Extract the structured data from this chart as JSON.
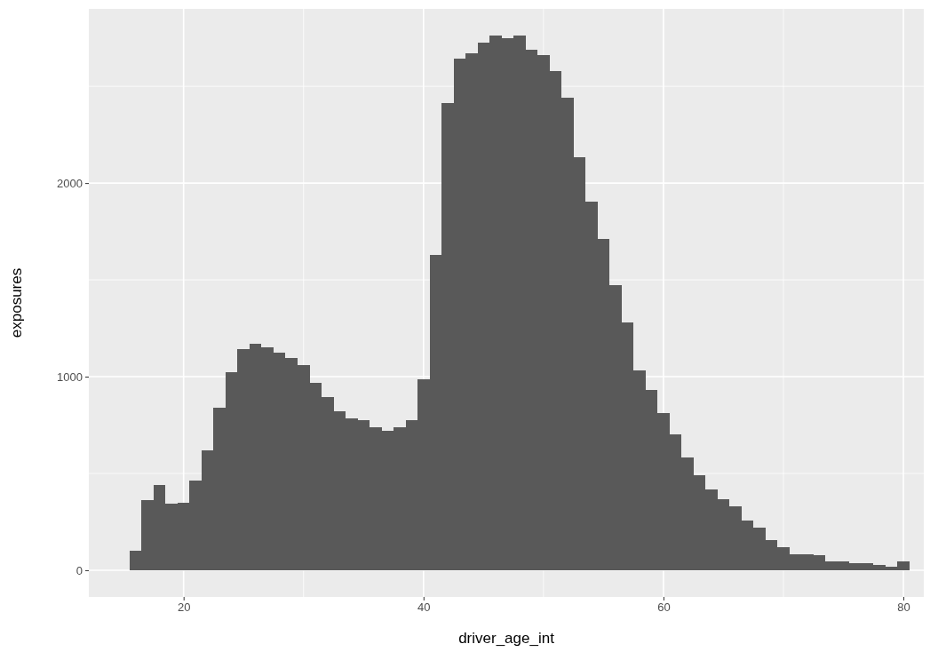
{
  "chart_data": {
    "type": "histogram",
    "xlabel": "driver_age_int",
    "ylabel": "exposures",
    "bins": [
      15.5,
      16.5,
      17.5,
      18.5,
      19.5,
      20.5,
      21.5,
      22.5,
      23.5,
      24.5,
      25.5,
      26.5,
      27.5,
      28.5,
      29.5,
      30.5,
      31.5,
      32.5,
      33.5,
      34.5,
      35.5,
      36.5,
      37.5,
      38.5,
      39.5,
      40.5,
      41.5,
      42.5,
      43.5,
      44.5,
      45.5,
      46.5,
      47.5,
      48.5,
      49.5,
      50.5,
      51.5,
      52.5,
      53.5,
      54.5,
      55.5,
      56.5,
      57.5,
      58.5,
      59.5,
      60.5,
      61.5,
      62.5,
      63.5,
      64.5,
      65.5,
      66.5,
      67.5,
      68.5,
      69.5,
      70.5,
      71.5,
      72.5,
      73.5,
      74.5,
      75.5,
      76.5,
      77.5,
      78.5,
      79.5,
      80.5
    ],
    "values": [
      101,
      360,
      441,
      342,
      349,
      463,
      617,
      838,
      1024,
      1142,
      1168,
      1153,
      1123,
      1096,
      1059,
      967,
      893,
      820,
      783,
      774,
      737,
      720,
      737,
      774,
      986,
      1631,
      2413,
      2642,
      2671,
      2726,
      2762,
      2747,
      2762,
      2690,
      2661,
      2579,
      2440,
      2134,
      1905,
      1711,
      1473,
      1278,
      1032,
      929,
      811,
      702,
      581,
      489,
      415,
      369,
      332,
      257,
      222,
      156,
      121,
      84,
      84,
      77,
      47,
      47,
      38,
      38,
      28,
      20,
      47
    ],
    "color": "#595959",
    "xlim": [
      12.1,
      81.7
    ],
    "ylim": [
      -138,
      2900
    ],
    "xticks": [
      20,
      40,
      60,
      80
    ],
    "yticks": [
      0,
      1000,
      2000
    ],
    "grid": true
  }
}
